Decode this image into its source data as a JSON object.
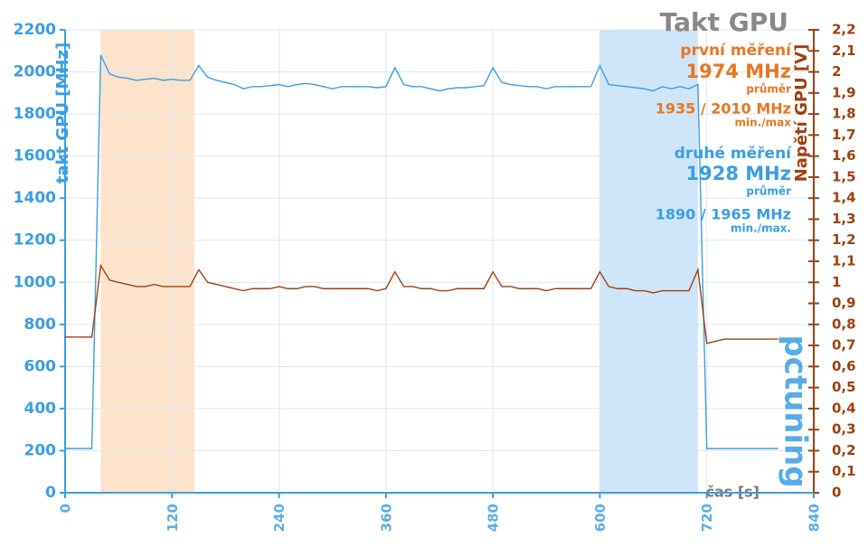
{
  "chart_data": {
    "type": "line",
    "title": "Takt GPU",
    "x_label": "čas [s]",
    "y_label": "takt GPU [MHz]",
    "y2_label": "Napětí GPU [V]",
    "logo": "pctuning",
    "annotations": [
      {
        "text": "první měření",
        "color": "#e87722"
      },
      {
        "text": "1974 MHz",
        "color": "#e87722"
      },
      {
        "text": "průměr",
        "color": "#e87722"
      },
      {
        "text": "1935 / 2010 MHz",
        "color": "#e87722"
      },
      {
        "text": "min./max",
        "color": "#e87722"
      },
      {
        "text": "druhé měření",
        "color": "#3a9ee4"
      },
      {
        "text": "1928 MHz",
        "color": "#3a9ee4"
      },
      {
        "text": "průměr",
        "color": "#3a9ee4"
      },
      {
        "text": "1890 / 1965 MHz",
        "color": "#3a9ee4"
      },
      {
        "text": "min./max.",
        "color": "#3a9ee4"
      }
    ],
    "bands": [
      {
        "xlim": [
          40,
          145
        ],
        "color": "#fde3cc"
      },
      {
        "xlim": [
          600,
          710
        ],
        "color": "#cfe5fa"
      }
    ],
    "xlim": [
      0,
      840
    ],
    "xticks": [
      0,
      120,
      240,
      360,
      480,
      600,
      720,
      840
    ],
    "ylim": [
      0,
      2200
    ],
    "yticks": [
      0,
      200,
      400,
      600,
      800,
      1000,
      1200,
      1400,
      1600,
      1800,
      2000,
      2200
    ],
    "y2lim": [
      0,
      2.2
    ],
    "y2ticks": [
      {
        "value": 0,
        "label": "0"
      },
      {
        "value": 0.1,
        "label": "0,1"
      },
      {
        "value": 0.2,
        "label": "0,2"
      },
      {
        "value": 0.3,
        "label": "0,3"
      },
      {
        "value": 0.4,
        "label": "0,4"
      },
      {
        "value": 0.5,
        "label": "0,5"
      },
      {
        "value": 0.6,
        "label": "0,6"
      },
      {
        "value": 0.7,
        "label": "0,7"
      },
      {
        "value": 0.8,
        "label": "0,8"
      },
      {
        "value": 0.9,
        "label": "0,9"
      },
      {
        "value": 1,
        "label": "1"
      },
      {
        "value": 1.1,
        "label": "1,1"
      },
      {
        "value": 1.2,
        "label": "1,2"
      },
      {
        "value": 1.3,
        "label": "1,3"
      },
      {
        "value": 1.4,
        "label": "1,4"
      },
      {
        "value": 1.5,
        "label": "1,5"
      },
      {
        "value": 1.6,
        "label": "1,6"
      },
      {
        "value": 1.7,
        "label": "1,7"
      },
      {
        "value": 1.8,
        "label": "1,8"
      },
      {
        "value": 1.9,
        "label": "1,9"
      },
      {
        "value": 2,
        "label": "2"
      },
      {
        "value": 2.1,
        "label": "2,1"
      },
      {
        "value": 2.2,
        "label": "2,2"
      }
    ],
    "grid": true,
    "x": [
      0,
      10,
      20,
      30,
      40,
      50,
      60,
      70,
      80,
      90,
      100,
      110,
      120,
      130,
      140,
      150,
      160,
      170,
      180,
      190,
      200,
      210,
      220,
      230,
      240,
      250,
      260,
      270,
      280,
      290,
      300,
      310,
      320,
      330,
      340,
      350,
      360,
      370,
      380,
      390,
      400,
      410,
      420,
      430,
      440,
      450,
      460,
      470,
      480,
      490,
      500,
      510,
      520,
      530,
      540,
      550,
      560,
      570,
      580,
      590,
      600,
      610,
      620,
      630,
      640,
      650,
      660,
      670,
      680,
      690,
      700,
      710,
      720,
      730,
      740,
      750,
      760,
      770,
      780,
      790,
      800
    ],
    "series": [
      {
        "name": "takt GPU",
        "color": "#3a9ee4",
        "axis": "y",
        "values": [
          210,
          210,
          210,
          210,
          2080,
          1990,
          1975,
          1970,
          1960,
          1965,
          1970,
          1960,
          1965,
          1960,
          1960,
          2030,
          1975,
          1960,
          1950,
          1940,
          1920,
          1930,
          1930,
          1935,
          1940,
          1930,
          1940,
          1945,
          1940,
          1930,
          1920,
          1930,
          1930,
          1930,
          1930,
          1925,
          1930,
          2020,
          1940,
          1930,
          1930,
          1920,
          1910,
          1920,
          1925,
          1925,
          1930,
          1935,
          2020,
          1950,
          1940,
          1935,
          1930,
          1930,
          1920,
          1930,
          1930,
          1930,
          1930,
          1930,
          2030,
          1940,
          1935,
          1930,
          1925,
          1920,
          1910,
          1930,
          1920,
          1930,
          1920,
          1940,
          210,
          210,
          210,
          210,
          210,
          210,
          210,
          210,
          210
        ]
      },
      {
        "name": "Napětí GPU",
        "color": "#a0400f",
        "axis": "y2",
        "values": [
          0.74,
          0.74,
          0.74,
          0.74,
          1.08,
          1.01,
          1.0,
          0.99,
          0.98,
          0.98,
          0.99,
          0.98,
          0.98,
          0.98,
          0.98,
          1.06,
          1.0,
          0.99,
          0.98,
          0.97,
          0.96,
          0.97,
          0.97,
          0.97,
          0.98,
          0.97,
          0.97,
          0.98,
          0.98,
          0.97,
          0.97,
          0.97,
          0.97,
          0.97,
          0.97,
          0.96,
          0.97,
          1.05,
          0.98,
          0.98,
          0.97,
          0.97,
          0.96,
          0.96,
          0.97,
          0.97,
          0.97,
          0.97,
          1.05,
          0.98,
          0.98,
          0.97,
          0.97,
          0.97,
          0.96,
          0.97,
          0.97,
          0.97,
          0.97,
          0.97,
          1.05,
          0.98,
          0.97,
          0.97,
          0.96,
          0.96,
          0.95,
          0.96,
          0.96,
          0.96,
          0.96,
          1.06,
          0.71,
          0.72,
          0.73,
          0.73,
          0.73,
          0.73,
          0.73,
          0.73,
          0.73
        ]
      }
    ]
  }
}
